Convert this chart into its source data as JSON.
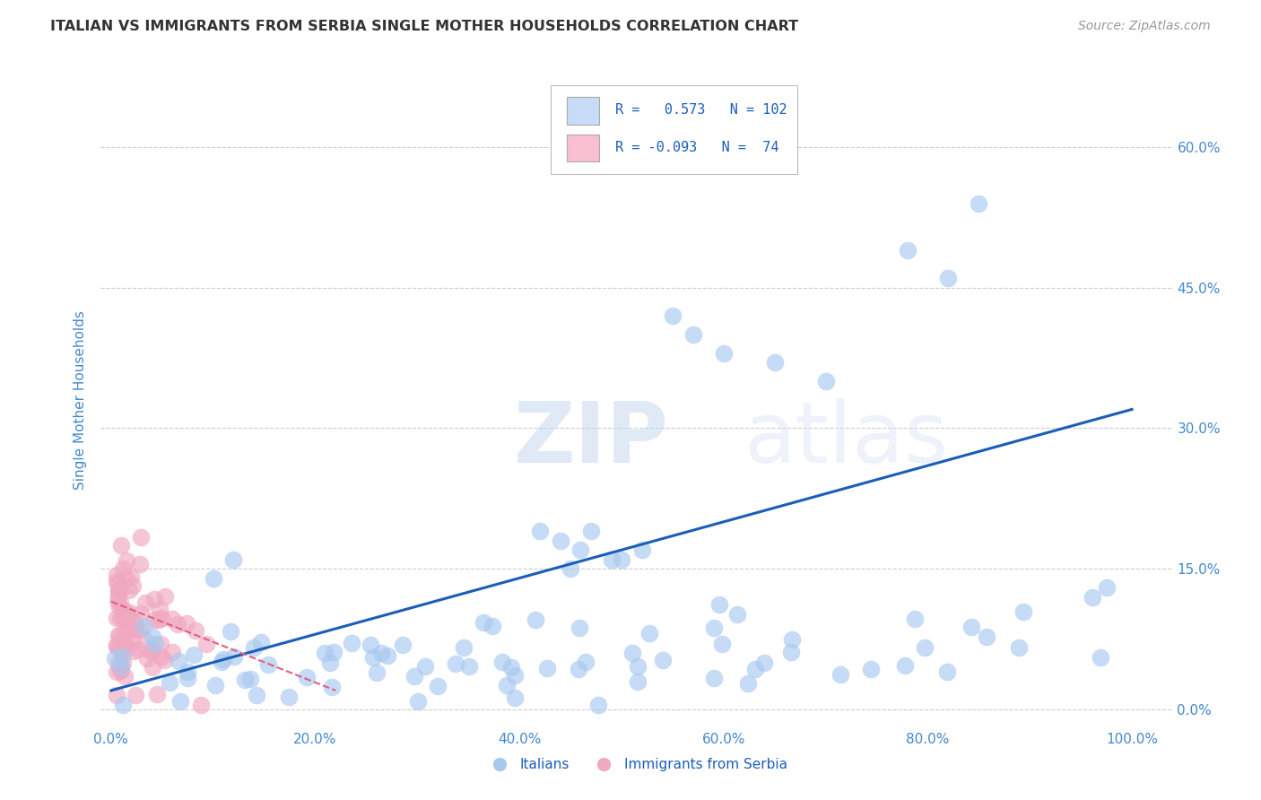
{
  "title": "ITALIAN VS IMMIGRANTS FROM SERBIA SINGLE MOTHER HOUSEHOLDS CORRELATION CHART",
  "source": "Source: ZipAtlas.com",
  "xlabel_ticks": [
    "0.0%",
    "20.0%",
    "40.0%",
    "60.0%",
    "80.0%",
    "100.0%"
  ],
  "xlabel_vals": [
    0.0,
    0.2,
    0.4,
    0.6,
    0.8,
    1.0
  ],
  "ylabel_ticks": [
    "0.0%",
    "15.0%",
    "30.0%",
    "45.0%",
    "60.0%"
  ],
  "ylabel_vals": [
    0.0,
    0.15,
    0.3,
    0.45,
    0.6
  ],
  "ylabel_label": "Single Mother Households",
  "xlim": [
    -0.01,
    1.04
  ],
  "ylim": [
    -0.02,
    0.68
  ],
  "italian_color": "#a8c8f0",
  "serbia_color": "#f0a8c0",
  "blue_line_color": "#1a5eb8",
  "pink_line_color": "#e06080",
  "legend_blue_face": "#c8dcf8",
  "legend_pink_face": "#f8c0d0",
  "R_italian": 0.573,
  "N_italian": 102,
  "R_serbia": -0.093,
  "N_serbia": 74,
  "watermark_zip": "ZIP",
  "watermark_atlas": "atlas",
  "grid_color": "#cccccc",
  "background_color": "#ffffff",
  "title_color": "#333333",
  "axis_label_color": "#4488cc",
  "tick_color": "#4488cc",
  "blue_line_x0": 0.0,
  "blue_line_x1": 1.0,
  "blue_line_y0": 0.02,
  "blue_line_y1": 0.32,
  "pink_line_x0": 0.0,
  "pink_line_x1": 0.22,
  "pink_line_y0": 0.115,
  "pink_line_y1": 0.02
}
